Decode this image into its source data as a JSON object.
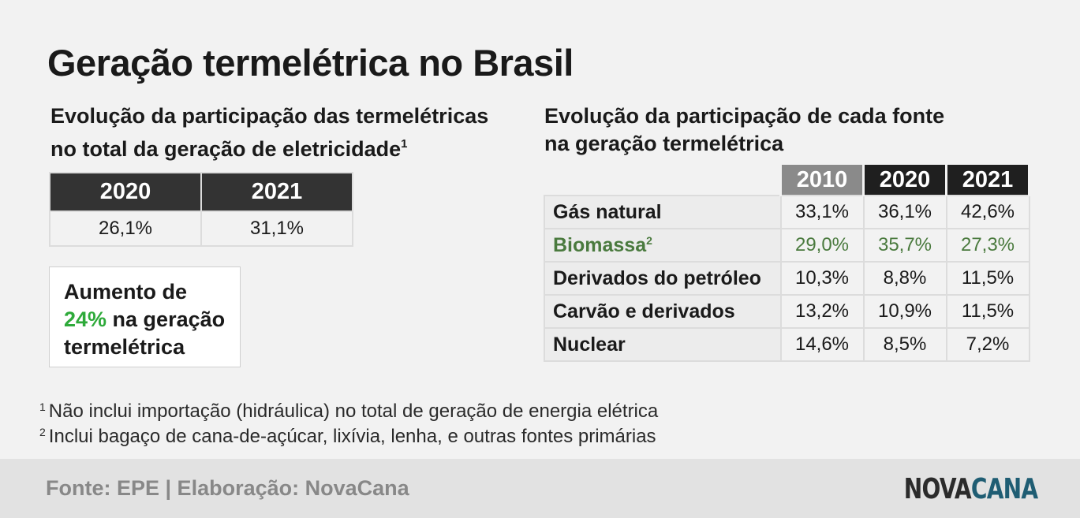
{
  "title": "Geração termelétrica no Brasil",
  "left_subtitle": {
    "line1": "Evolução da participação das termelétricas",
    "line2": "no total da geração de eletricidade",
    "sup": "1"
  },
  "right_subtitle": {
    "line1": "Evolução da participação de cada fonte",
    "line2": "na geração termelétrica"
  },
  "callout": {
    "line1": "Aumento de",
    "highlight": "24%",
    "line2_rest": " na geração",
    "line3": "termelétrica"
  },
  "colors": {
    "header_dark": "#1f1f1f",
    "header_gray": "#8a8a8a",
    "biomassa_green": "#4a7a3e",
    "highlight_green": "#2eaa3a",
    "logo_blue": "#1f5d73"
  },
  "chart_data": [
    {
      "type": "table",
      "columns": [
        "2020",
        "2021"
      ],
      "rows": [
        [
          "26,1%",
          "31,1%"
        ]
      ]
    },
    {
      "type": "table",
      "columns": [
        "",
        "2010",
        "2020",
        "2021"
      ],
      "rows": [
        {
          "label": "Gás natural",
          "sup": "",
          "values": [
            "33,1%",
            "36,1%",
            "42,6%"
          ]
        },
        {
          "label": "Biomassa",
          "sup": "2",
          "values": [
            "29,0%",
            "35,7%",
            "27,3%"
          ]
        },
        {
          "label": "Derivados do petróleo",
          "sup": "",
          "values": [
            "10,3%",
            "8,8%",
            "11,5%"
          ]
        },
        {
          "label": "Carvão e derivados",
          "sup": "",
          "values": [
            "13,2%",
            "10,9%",
            "11,5%"
          ]
        },
        {
          "label": "Nuclear",
          "sup": "",
          "values": [
            "14,6%",
            "8,5%",
            "7,2%"
          ]
        }
      ]
    }
  ],
  "footnotes": [
    {
      "mark": "1",
      "text": "Não inclui importação (hidráulica) no total de geração de energia elétrica"
    },
    {
      "mark": "2",
      "text": "Inclui bagaço de cana-de-açúcar, lixívia, lenha, e outras fontes primárias"
    }
  ],
  "footer": {
    "source": "Fonte: EPE | Elaboração: NovaCana",
    "logo_part1": "NOVA",
    "logo_part2": "CANA"
  }
}
